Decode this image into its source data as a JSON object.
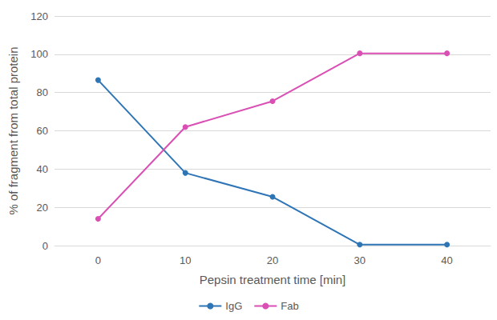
{
  "chart_data": {
    "type": "line",
    "x_label": "Pepsin treatment time [min]",
    "y_label": "% of fragment from total protein",
    "categories": [
      "0",
      "10",
      "20",
      "30",
      "40"
    ],
    "series": [
      {
        "name": "IgG",
        "color": "#2e75b6",
        "values": [
          86.5,
          38,
          25.5,
          0.5,
          0.5
        ]
      },
      {
        "name": "Fab",
        "color": "#d94fb4",
        "values": [
          14,
          62,
          75.5,
          100.5,
          100.5
        ]
      }
    ],
    "ylim": [
      0,
      120
    ],
    "yticks": [
      0,
      20,
      40,
      60,
      80,
      100,
      120
    ],
    "grid": true,
    "legend": "bottom",
    "marker": "circle"
  }
}
